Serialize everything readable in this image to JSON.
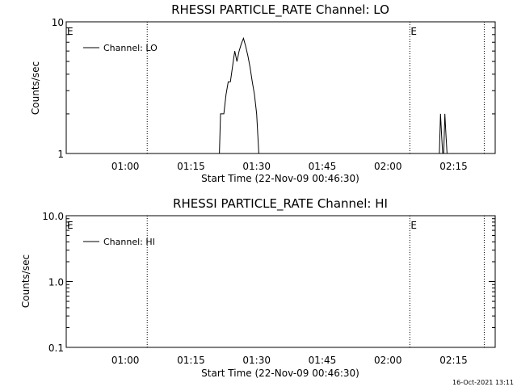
{
  "chart_data": [
    {
      "type": "line",
      "title": "RHESSI PARTICLE_RATE Channel: LO",
      "xlabel": "Start Time (22-Nov-09 00:46:30)",
      "ylabel": "Counts/sec",
      "yscale": "log",
      "ylim": [
        1,
        10
      ],
      "ytick_labels": [
        "1",
        "10"
      ],
      "xlim": [
        "00:46:30",
        "02:24:30"
      ],
      "xtick_labels": [
        "01:00",
        "01:15",
        "01:30",
        "01:45",
        "02:00",
        "02:15"
      ],
      "grid": false,
      "legend_position": "top-left",
      "series": [
        {
          "name": "Channel: LO",
          "x": [
            "01:21:30",
            "01:21:45",
            "01:22:30",
            "01:23:00",
            "01:23:30",
            "01:24:00",
            "01:24:30",
            "01:25:00",
            "01:25:30",
            "01:26:00",
            "01:26:30",
            "01:27:00",
            "01:27:30",
            "01:28:00",
            "01:28:30",
            "01:29:00",
            "01:29:30",
            "01:30:00",
            "01:30:30",
            "02:11:45",
            "02:12:00",
            "02:12:15",
            "02:12:30",
            "02:12:45",
            "02:13:00",
            "02:13:15",
            "02:13:30",
            "02:13:45",
            "02:14:00"
          ],
          "y": [
            1,
            2,
            2,
            2.8,
            3.5,
            3.5,
            4.6,
            6.0,
            5.0,
            6.0,
            6.8,
            7.5,
            6.5,
            5.5,
            4.5,
            3.5,
            2.8,
            2.0,
            1,
            1,
            2,
            1.4,
            1,
            1,
            2,
            1.4,
            1,
            1,
            1
          ]
        }
      ],
      "annotations": [
        {
          "text": "E",
          "x": "00:46:30"
        },
        {
          "text": "E",
          "x": "02:05:00"
        }
      ],
      "dotted_vlines": [
        "01:05:00",
        "02:05:00",
        "02:22:00"
      ]
    },
    {
      "type": "line",
      "title": "RHESSI PARTICLE_RATE Channel: HI",
      "xlabel": "Start Time (22-Nov-09 00:46:30)",
      "ylabel": "Counts/sec",
      "yscale": "log",
      "ylim": [
        0.1,
        10
      ],
      "ytick_labels": [
        "0.1",
        "1.0",
        "10.0"
      ],
      "xlim": [
        "00:46:30",
        "02:24:30"
      ],
      "xtick_labels": [
        "01:00",
        "01:15",
        "01:30",
        "01:45",
        "02:00",
        "02:15"
      ],
      "grid": false,
      "legend_position": "top-left",
      "series": [
        {
          "name": "Channel: HI",
          "x": [],
          "y": []
        }
      ],
      "annotations": [
        {
          "text": "E",
          "x": "00:46:30"
        },
        {
          "text": "E",
          "x": "02:05:00"
        }
      ],
      "dotted_vlines": [
        "01:05:00",
        "02:05:00",
        "02:22:00"
      ]
    }
  ],
  "footer": {
    "timestamp": "16-Oct-2021 13:11"
  }
}
